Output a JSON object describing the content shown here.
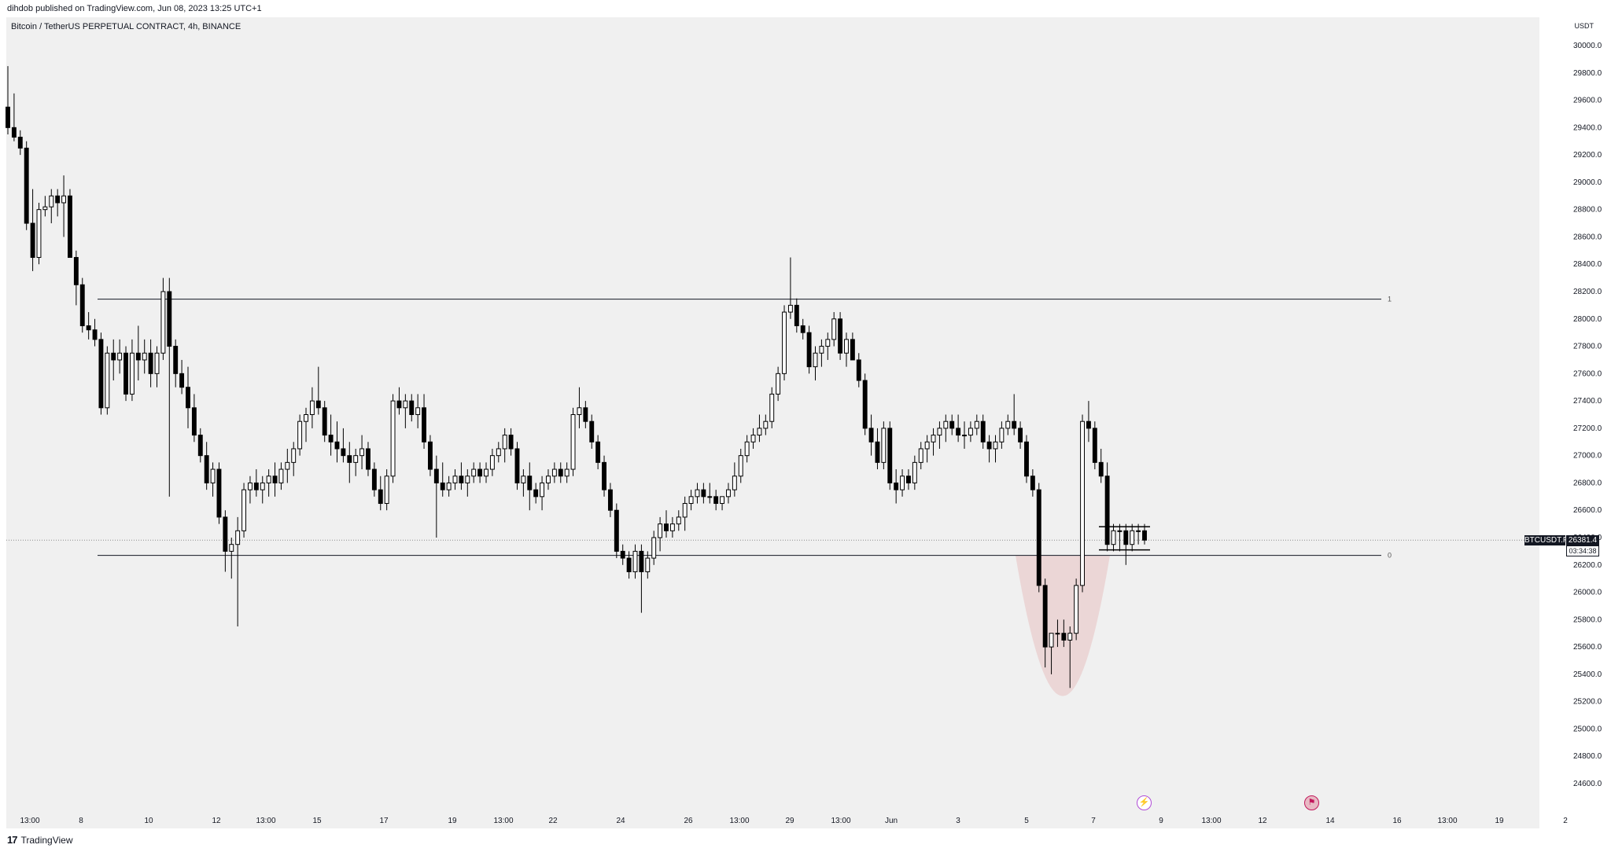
{
  "header": {
    "publish_line": "dihdob published on TradingView.com, Jun 08, 2023 13:25 UTC+1",
    "symbol_title": "Bitcoin / TetherUS PERPETUAL CONTRACT, 4h, BINANCE",
    "currency": "USDT"
  },
  "footer": {
    "brand": "TradingView",
    "mark": "17"
  },
  "price_tag": {
    "symbol": "BTCUSDT.P",
    "price": "26381.4",
    "countdown": "03:34:38"
  },
  "levels": {
    "upper_label": "1",
    "lower_label": "0"
  },
  "events": {
    "bolt_icon": "lightning-bolt-icon",
    "flag_icon": "us-flag-icon"
  },
  "colors": {
    "background": "#f0f0f0",
    "candle_down": "#000000",
    "candle_up": "#ffffff",
    "zone": "#e8c4c4",
    "level_line": "#131722"
  },
  "chart_data": {
    "type": "candlestick",
    "title": "Bitcoin / TetherUS PERPETUAL CONTRACT, 4h, BINANCE",
    "xlabel": "",
    "ylabel": "USDT",
    "ylim": [
      24400,
      30150
    ],
    "y_ticks": [
      "30000.0",
      "29800.0",
      "29600.0",
      "29400.0",
      "29200.0",
      "29000.0",
      "28800.0",
      "28600.0",
      "28400.0",
      "28200.0",
      "28000.0",
      "27800.0",
      "27600.0",
      "27400.0",
      "27200.0",
      "27000.0",
      "26800.0",
      "26600.0",
      "26400.0",
      "26200.0",
      "26000.0",
      "25800.0",
      "25600.0",
      "25400.0",
      "25200.0",
      "25000.0",
      "24800.0",
      "24600.0"
    ],
    "x_ticks": [
      "13:00",
      "8",
      "10",
      "12",
      "13:00",
      "15",
      "17",
      "19",
      "13:00",
      "22",
      "24",
      "26",
      "13:00",
      "29",
      "13:00",
      "Jun",
      "3",
      "5",
      "7",
      "9",
      "13:00",
      "12",
      "14",
      "16",
      "13:00",
      "19",
      "2"
    ],
    "horizontal_levels": [
      {
        "label": "1",
        "value": 28145
      },
      {
        "label": "0",
        "value": 26270
      }
    ],
    "current_price": 26381.4,
    "candles": [
      [
        29550,
        29850,
        29350,
        29400
      ],
      [
        29400,
        29650,
        29300,
        29330
      ],
      [
        29330,
        29380,
        29200,
        29250
      ],
      [
        29250,
        29300,
        28650,
        28700
      ],
      [
        28700,
        28950,
        28350,
        28450
      ],
      [
        28450,
        28850,
        28400,
        28800
      ],
      [
        28800,
        28900,
        28750,
        28820
      ],
      [
        28820,
        28950,
        28700,
        28900
      ],
      [
        28900,
        28950,
        28750,
        28850
      ],
      [
        28850,
        29050,
        28600,
        28900
      ],
      [
        28900,
        28950,
        28450,
        28450
      ],
      [
        28450,
        28500,
        28100,
        28250
      ],
      [
        28250,
        28300,
        27900,
        27950
      ],
      [
        27950,
        28050,
        27850,
        27920
      ],
      [
        27920,
        28000,
        27800,
        27850
      ],
      [
        27850,
        27900,
        27300,
        27350
      ],
      [
        27350,
        27800,
        27300,
        27750
      ],
      [
        27750,
        27850,
        27550,
        27700
      ],
      [
        27700,
        27850,
        27600,
        27750
      ],
      [
        27750,
        27800,
        27400,
        27450
      ],
      [
        27450,
        27850,
        27400,
        27750
      ],
      [
        27750,
        27950,
        27550,
        27700
      ],
      [
        27700,
        27850,
        27600,
        27750
      ],
      [
        27750,
        27850,
        27500,
        27600
      ],
      [
        27600,
        27800,
        27500,
        27750
      ],
      [
        27750,
        28300,
        27700,
        28200
      ],
      [
        28200,
        28300,
        26700,
        27800
      ],
      [
        27800,
        27850,
        27500,
        27600
      ],
      [
        27600,
        27700,
        27450,
        27500
      ],
      [
        27500,
        27650,
        27200,
        27350
      ],
      [
        27350,
        27450,
        27100,
        27150
      ],
      [
        27150,
        27200,
        26950,
        27000
      ],
      [
        27000,
        27100,
        26750,
        26800
      ],
      [
        26800,
        26950,
        26700,
        26900
      ],
      [
        26900,
        26950,
        26500,
        26550
      ],
      [
        26550,
        26600,
        26150,
        26300
      ],
      [
        26300,
        26400,
        26100,
        26350
      ],
      [
        26350,
        26550,
        25750,
        26450
      ],
      [
        26450,
        26800,
        26400,
        26750
      ],
      [
        26750,
        26850,
        26650,
        26800
      ],
      [
        26800,
        26900,
        26700,
        26750
      ],
      [
        26750,
        26850,
        26650,
        26800
      ],
      [
        26800,
        26900,
        26700,
        26850
      ],
      [
        26850,
        26950,
        26700,
        26800
      ],
      [
        26800,
        26950,
        26750,
        26900
      ],
      [
        26900,
        27050,
        26800,
        26950
      ],
      [
        26950,
        27100,
        26850,
        27050
      ],
      [
        27050,
        27300,
        27000,
        27250
      ],
      [
        27250,
        27350,
        27100,
        27300
      ],
      [
        27300,
        27500,
        27200,
        27400
      ],
      [
        27400,
        27650,
        27300,
        27350
      ],
      [
        27350,
        27400,
        27100,
        27150
      ],
      [
        27150,
        27300,
        27000,
        27100
      ],
      [
        27100,
        27250,
        26950,
        27050
      ],
      [
        27050,
        27200,
        26950,
        27000
      ],
      [
        27000,
        27100,
        26800,
        26950
      ],
      [
        26950,
        27050,
        26850,
        27000
      ],
      [
        27000,
        27150,
        26900,
        27050
      ],
      [
        27050,
        27100,
        26850,
        26900
      ],
      [
        26900,
        26950,
        26700,
        26750
      ],
      [
        26750,
        26850,
        26600,
        26650
      ],
      [
        26650,
        26900,
        26600,
        26850
      ],
      [
        26850,
        27450,
        26800,
        27400
      ],
      [
        27400,
        27500,
        27300,
        27350
      ],
      [
        27350,
        27450,
        27200,
        27400
      ],
      [
        27400,
        27450,
        27250,
        27300
      ],
      [
        27300,
        27450,
        27200,
        27350
      ],
      [
        27350,
        27450,
        27050,
        27100
      ],
      [
        27100,
        27150,
        26850,
        26900
      ],
      [
        26900,
        27000,
        26400,
        26800
      ],
      [
        26800,
        26950,
        26700,
        26750
      ],
      [
        26750,
        26850,
        26700,
        26800
      ],
      [
        26800,
        26900,
        26750,
        26850
      ],
      [
        26850,
        26950,
        26750,
        26800
      ],
      [
        26800,
        26900,
        26700,
        26850
      ],
      [
        26850,
        26950,
        26800,
        26900
      ],
      [
        26900,
        26950,
        26800,
        26850
      ],
      [
        26850,
        26950,
        26800,
        26900
      ],
      [
        26900,
        27050,
        26850,
        27000
      ],
      [
        27000,
        27100,
        26950,
        27050
      ],
      [
        27050,
        27200,
        26950,
        27150
      ],
      [
        27150,
        27200,
        27000,
        27050
      ],
      [
        27050,
        27100,
        26750,
        26800
      ],
      [
        26800,
        26900,
        26700,
        26850
      ],
      [
        26850,
        26950,
        26600,
        26750
      ],
      [
        26750,
        26800,
        26650,
        26700
      ],
      [
        26700,
        26850,
        26600,
        26800
      ],
      [
        26800,
        26900,
        26750,
        26850
      ],
      [
        26850,
        26950,
        26800,
        26900
      ],
      [
        26900,
        26950,
        26800,
        26850
      ],
      [
        26850,
        26950,
        26800,
        26900
      ],
      [
        26900,
        27350,
        26850,
        27300
      ],
      [
        27300,
        27500,
        27200,
        27350
      ],
      [
        27350,
        27400,
        27200,
        27250
      ],
      [
        27250,
        27300,
        27050,
        27100
      ],
      [
        27100,
        27150,
        26900,
        26950
      ],
      [
        26950,
        27000,
        26700,
        26750
      ],
      [
        26750,
        26800,
        26550,
        26600
      ],
      [
        26600,
        26650,
        26250,
        26300
      ],
      [
        26300,
        26350,
        26200,
        26250
      ],
      [
        26250,
        26300,
        26100,
        26150
      ],
      [
        26150,
        26350,
        26100,
        26300
      ],
      [
        26300,
        26350,
        25850,
        26150
      ],
      [
        26150,
        26300,
        26100,
        26250
      ],
      [
        26250,
        26450,
        26200,
        26400
      ],
      [
        26400,
        26550,
        26300,
        26500
      ],
      [
        26500,
        26600,
        26400,
        26450
      ],
      [
        26450,
        26550,
        26400,
        26500
      ],
      [
        26500,
        26600,
        26450,
        26550
      ],
      [
        26550,
        26700,
        26450,
        26650
      ],
      [
        26650,
        26750,
        26600,
        26700
      ],
      [
        26700,
        26800,
        26650,
        26750
      ],
      [
        26750,
        26800,
        26650,
        26700
      ],
      [
        26700,
        26800,
        26650,
        26700
      ],
      [
        26700,
        26750,
        26600,
        26650
      ],
      [
        26650,
        26700,
        26600,
        26700
      ],
      [
        26700,
        26800,
        26650,
        26750
      ],
      [
        26750,
        26950,
        26700,
        26850
      ],
      [
        26850,
        27050,
        26800,
        27000
      ],
      [
        27000,
        27150,
        26950,
        27100
      ],
      [
        27100,
        27200,
        27050,
        27150
      ],
      [
        27150,
        27300,
        27100,
        27200
      ],
      [
        27200,
        27300,
        27150,
        27250
      ],
      [
        27250,
        27500,
        27200,
        27450
      ],
      [
        27450,
        27650,
        27400,
        27600
      ],
      [
        27600,
        28100,
        27550,
        28050
      ],
      [
        28050,
        28450,
        28000,
        28100
      ],
      [
        28100,
        28150,
        27900,
        27950
      ],
      [
        27950,
        28000,
        27850,
        27900
      ],
      [
        27900,
        27950,
        27600,
        27650
      ],
      [
        27650,
        27800,
        27550,
        27750
      ],
      [
        27750,
        27850,
        27650,
        27800
      ],
      [
        27800,
        27900,
        27700,
        27850
      ],
      [
        27850,
        28050,
        27800,
        28000
      ],
      [
        28000,
        28050,
        27700,
        27750
      ],
      [
        27750,
        27900,
        27650,
        27850
      ],
      [
        27850,
        27900,
        27700,
        27700
      ],
      [
        27700,
        27750,
        27500,
        27550
      ],
      [
        27550,
        27600,
        27150,
        27200
      ],
      [
        27200,
        27300,
        27000,
        27100
      ],
      [
        27100,
        27200,
        26900,
        26950
      ],
      [
        26950,
        27250,
        26900,
        27200
      ],
      [
        27200,
        27250,
        26750,
        26800
      ],
      [
        26800,
        26900,
        26650,
        26750
      ],
      [
        26750,
        26900,
        26700,
        26850
      ],
      [
        26850,
        26900,
        26750,
        26800
      ],
      [
        26800,
        27000,
        26750,
        26950
      ],
      [
        26950,
        27100,
        26900,
        27050
      ],
      [
        27050,
        27150,
        26950,
        27100
      ],
      [
        27100,
        27200,
        27000,
        27150
      ],
      [
        27150,
        27250,
        27050,
        27200
      ],
      [
        27200,
        27300,
        27100,
        27250
      ],
      [
        27250,
        27300,
        27150,
        27200
      ],
      [
        27200,
        27300,
        27100,
        27150
      ],
      [
        27150,
        27250,
        27050,
        27150
      ],
      [
        27150,
        27250,
        27100,
        27200
      ],
      [
        27200,
        27300,
        27150,
        27250
      ],
      [
        27250,
        27300,
        27050,
        27100
      ],
      [
        27100,
        27150,
        26950,
        27050
      ],
      [
        27050,
        27150,
        26950,
        27100
      ],
      [
        27100,
        27250,
        27050,
        27200
      ],
      [
        27200,
        27300,
        27150,
        27250
      ],
      [
        27250,
        27450,
        27150,
        27200
      ],
      [
        27200,
        27250,
        27050,
        27100
      ],
      [
        27100,
        27150,
        26800,
        26850
      ],
      [
        26850,
        26900,
        26700,
        26750
      ],
      [
        26750,
        26800,
        26000,
        26050
      ],
      [
        26050,
        26100,
        25450,
        25600
      ],
      [
        25600,
        25700,
        25400,
        25700
      ],
      [
        25700,
        25800,
        25600,
        25700
      ],
      [
        25700,
        25800,
        25600,
        25650
      ],
      [
        25650,
        25750,
        25300,
        25700
      ],
      [
        25700,
        26100,
        25650,
        26050
      ],
      [
        26050,
        27300,
        26000,
        27250
      ],
      [
        27250,
        27400,
        27100,
        27200
      ],
      [
        27200,
        27250,
        26900,
        26950
      ],
      [
        26950,
        27050,
        26800,
        26850
      ],
      [
        26850,
        26950,
        26300,
        26350
      ],
      [
        26350,
        26500,
        26300,
        26450
      ],
      [
        26450,
        26500,
        26300,
        26450
      ],
      [
        26450,
        26500,
        26200,
        26350
      ],
      [
        26350,
        26500,
        26300,
        26450
      ],
      [
        26450,
        26500,
        26350,
        26450
      ],
      [
        26450,
        26500,
        26350,
        26381.4
      ]
    ],
    "price_zone": {
      "shape": "parabola",
      "top": 26270,
      "bottom": 25230
    }
  }
}
